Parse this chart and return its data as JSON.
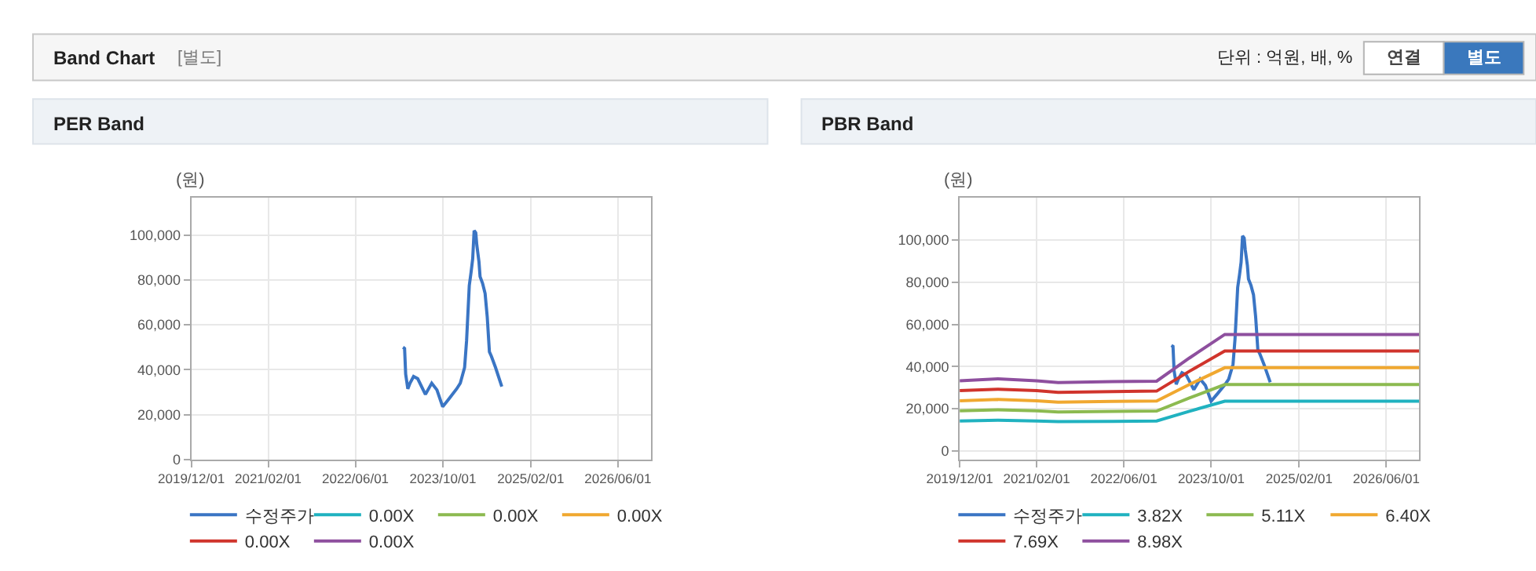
{
  "chart_data": [
    {
      "type": "other",
      "title": "Band Chart",
      "subtitle": "[별도]",
      "annotations": [
        "단위 : 억원, 배, %",
        "연결",
        "별도"
      ]
    },
    {
      "type": "line",
      "title": "PER Band",
      "ylabel": "(원)",
      "xlim": [
        "2019-12-01",
        "2026-12-01"
      ],
      "xticks": [
        {
          "value": "2019-12-01",
          "label": "2019/12/01"
        },
        {
          "value": "2021-02-01",
          "label": "2021/02/01"
        },
        {
          "value": "2022-06-01",
          "label": "2022/06/01"
        },
        {
          "value": "2023-10-01",
          "label": "2023/10/01"
        },
        {
          "value": "2025-02-01",
          "label": "2025/02/01"
        },
        {
          "value": "2026-06-01",
          "label": "2026/06/01"
        }
      ],
      "ylim": [
        0,
        116500
      ],
      "yticks": [
        0,
        {
          "value": 20000,
          "label": "20,000"
        },
        {
          "value": 40000,
          "label": "40,000"
        },
        {
          "value": 60000,
          "label": "60,000"
        },
        {
          "value": 80000,
          "label": "80,000"
        },
        {
          "value": 100000,
          "label": "100,000"
        }
      ],
      "grid": true,
      "legend": "bottom",
      "series": [
        {
          "name": "수정주가",
          "color": "#3a75c4",
          "x": [
            "2023-02-21",
            "2023-03-02",
            "2023-03-08",
            "2023-03-20",
            "2023-04-01",
            "2023-04-21",
            "2023-05-14",
            "2023-06-26",
            "2023-07-31",
            "2023-08-29",
            "2023-09-30",
            "2023-11-04",
            "2023-12-17",
            "2024-01-06",
            "2024-01-30",
            "2024-02-10",
            "2024-02-25",
            "2024-03-06",
            "2024-03-15",
            "2024-03-23",
            "2024-04-01",
            "2024-04-07",
            "2024-04-19",
            "2024-04-25",
            "2024-05-09",
            "2024-05-23",
            "2024-06-04",
            "2024-06-16",
            "2024-06-27",
            "2024-07-20",
            "2024-08-24"
          ],
          "values": [
            50000,
            49500,
            38000,
            31500,
            34000,
            37000,
            36000,
            29000,
            34000,
            31000,
            23500,
            27000,
            31500,
            34000,
            41000,
            53000,
            77500,
            83500,
            89500,
            102000,
            101000,
            95500,
            88000,
            81500,
            78500,
            74000,
            63500,
            48000,
            46000,
            41000,
            32500
          ]
        },
        {
          "name": "0.00X",
          "color": "#20b2c0"
        },
        {
          "name": "0.00X",
          "color": "#8cba50"
        },
        {
          "name": "0.00X",
          "color": "#f0a830"
        },
        {
          "name": "0.00X",
          "color": "#d0342c"
        },
        {
          "name": "0.00X",
          "color": "#8e4f9e"
        }
      ]
    },
    {
      "type": "line",
      "title": "PBR Band",
      "ylabel": "(원)",
      "xlim": [
        "2019-12-01",
        "2026-12-01"
      ],
      "xticks": [
        {
          "value": "2019-12-01",
          "label": "2019/12/01"
        },
        {
          "value": "2021-02-01",
          "label": "2021/02/01"
        },
        {
          "value": "2022-06-01",
          "label": "2022/06/01"
        },
        {
          "value": "2023-10-01",
          "label": "2023/10/01"
        },
        {
          "value": "2025-02-01",
          "label": "2025/02/01"
        },
        {
          "value": "2026-06-01",
          "label": "2026/06/01"
        }
      ],
      "ylim": [
        -4200,
        120000
      ],
      "yticks": [
        0,
        {
          "value": 20000,
          "label": "20,000"
        },
        {
          "value": 40000,
          "label": "40,000"
        },
        {
          "value": 60000,
          "label": "60,000"
        },
        {
          "value": 80000,
          "label": "80,000"
        },
        {
          "value": 100000,
          "label": "100,000"
        }
      ],
      "grid": true,
      "legend": "bottom",
      "series": [
        {
          "name": "수정주가",
          "color": "#3a75c4",
          "x": [
            "2023-02-21",
            "2023-03-02",
            "2023-03-08",
            "2023-03-20",
            "2023-04-01",
            "2023-04-21",
            "2023-05-14",
            "2023-06-26",
            "2023-07-31",
            "2023-08-29",
            "2023-09-30",
            "2023-11-04",
            "2023-12-17",
            "2024-01-06",
            "2024-01-30",
            "2024-02-10",
            "2024-02-25",
            "2024-03-06",
            "2024-03-15",
            "2024-03-23",
            "2024-04-01",
            "2024-04-07",
            "2024-04-19",
            "2024-04-25",
            "2024-05-09",
            "2024-05-23",
            "2024-06-04",
            "2024-06-16",
            "2024-06-27",
            "2024-07-20",
            "2024-08-24"
          ],
          "values": [
            50000,
            49500,
            38000,
            31500,
            34000,
            37000,
            36000,
            29000,
            34000,
            31000,
            23500,
            27000,
            31500,
            34000,
            41000,
            53000,
            77500,
            83500,
            89500,
            102000,
            101000,
            95500,
            88000,
            81500,
            78500,
            74000,
            63500,
            48000,
            46000,
            41000,
            32500
          ]
        },
        {
          "name": "3.82X",
          "color": "#20b2c0",
          "x": [
            "2019-12-01",
            "2020-07-01",
            "2021-02-01",
            "2021-06-01",
            "2022-04-01",
            "2022-12-01",
            "2023-06-01",
            "2023-12-15",
            "2026-12-01"
          ],
          "values": [
            14100,
            14500,
            14100,
            13800,
            13900,
            14100,
            18700,
            23500,
            23500
          ]
        },
        {
          "name": "5.11X",
          "color": "#8cba50",
          "x": [
            "2019-12-01",
            "2020-07-01",
            "2021-02-01",
            "2021-06-01",
            "2022-04-01",
            "2022-12-01",
            "2023-06-01",
            "2023-12-15",
            "2026-12-01"
          ],
          "values": [
            18900,
            19400,
            18900,
            18400,
            18700,
            18800,
            25000,
            31400,
            31400
          ]
        },
        {
          "name": "6.40X",
          "color": "#f0a830",
          "x": [
            "2019-12-01",
            "2020-07-01",
            "2021-02-01",
            "2021-06-01",
            "2022-04-01",
            "2022-12-01",
            "2023-06-01",
            "2023-12-15",
            "2026-12-01"
          ],
          "values": [
            23700,
            24300,
            23700,
            23000,
            23400,
            23600,
            31400,
            39400,
            39400
          ]
        },
        {
          "name": "7.69X",
          "color": "#d0342c",
          "x": [
            "2019-12-01",
            "2020-07-01",
            "2021-02-01",
            "2021-06-01",
            "2022-04-01",
            "2022-12-01",
            "2023-06-01",
            "2023-12-15",
            "2026-12-01"
          ],
          "values": [
            28500,
            29200,
            28500,
            27700,
            28100,
            28300,
            37700,
            47300,
            47300
          ]
        },
        {
          "name": "8.98X",
          "color": "#8e4f9e",
          "x": [
            "2019-12-01",
            "2020-07-01",
            "2021-02-01",
            "2021-06-01",
            "2022-04-01",
            "2022-12-01",
            "2023-06-01",
            "2023-12-15",
            "2026-12-01"
          ],
          "values": [
            33200,
            34100,
            33200,
            32300,
            32800,
            33000,
            44000,
            55200,
            55200
          ]
        }
      ]
    }
  ]
}
